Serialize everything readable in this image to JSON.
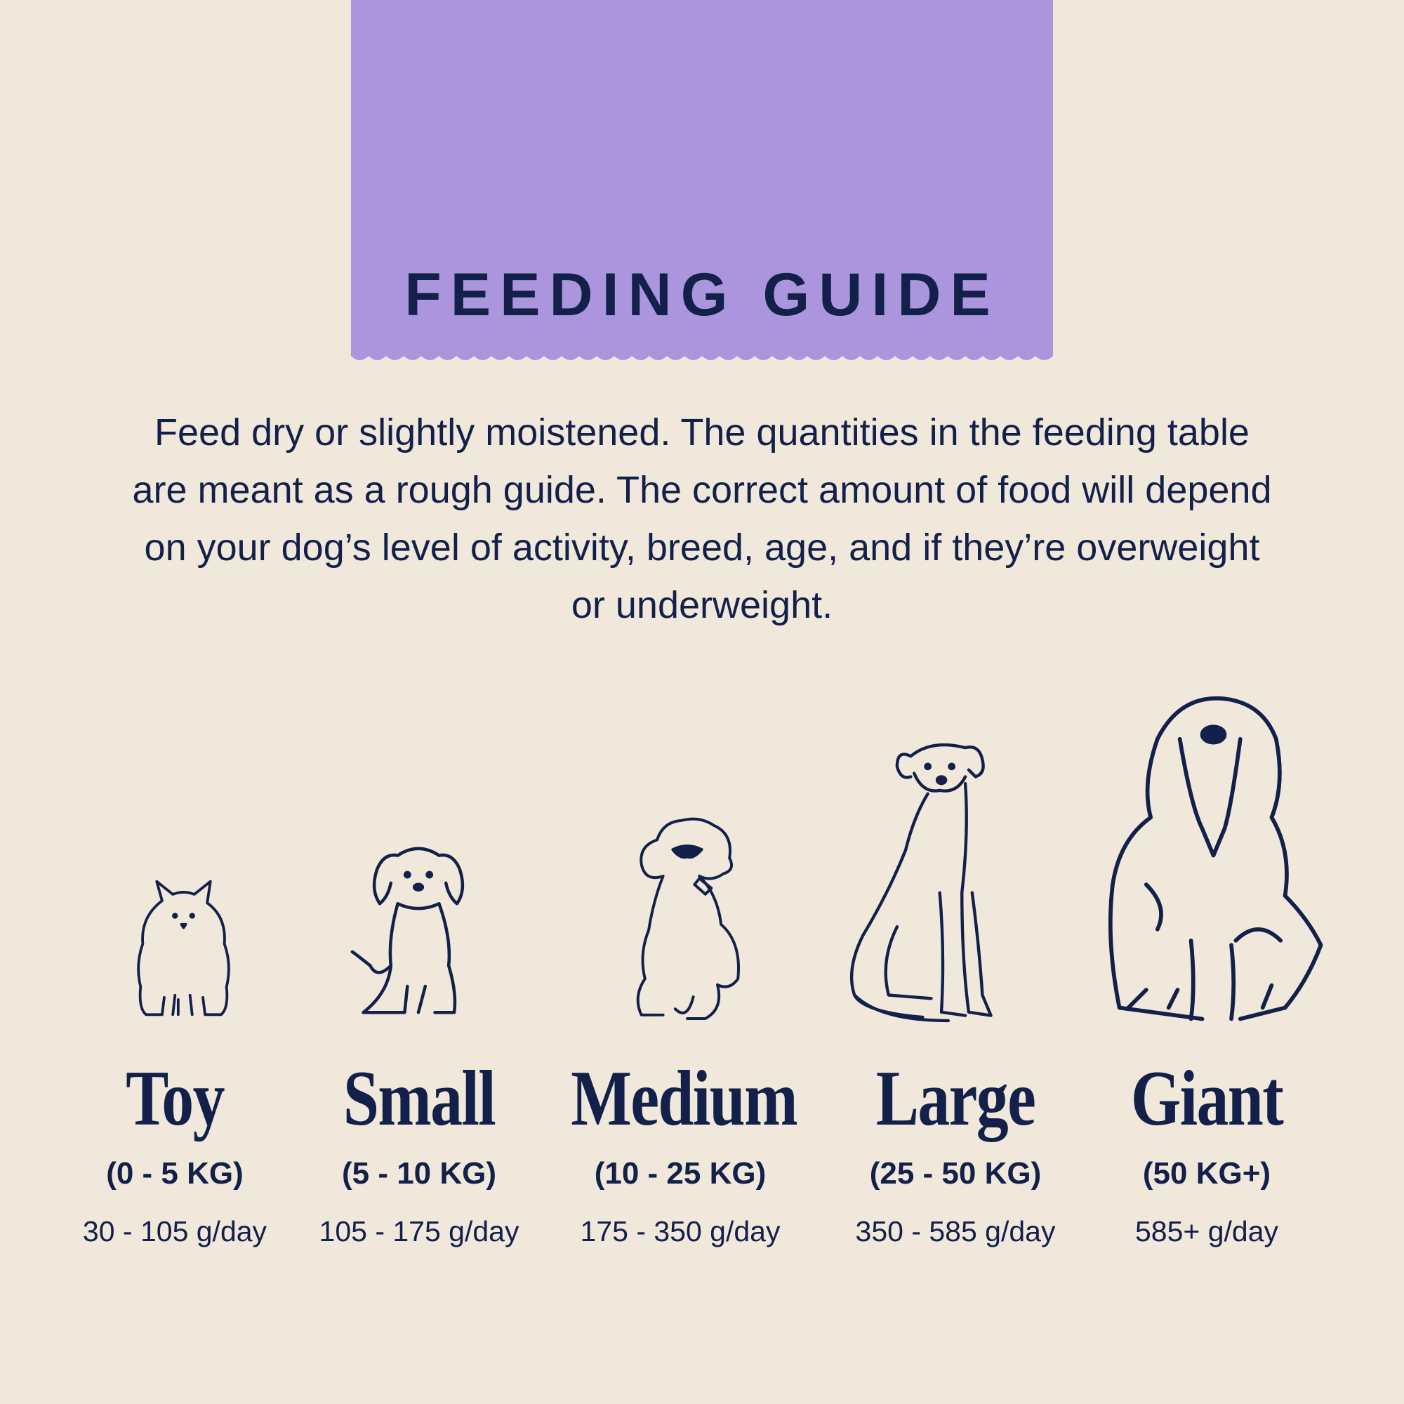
{
  "colors": {
    "background": "#f1e8dc",
    "banner": "#ab96dd",
    "text": "#13204a"
  },
  "header": {
    "title": "FEEDING GUIDE"
  },
  "intro": "Feed dry or slightly moistened. The quantities in the feeding table are meant as a rough guide. The correct amount of food will depend on your dog’s level of activity, breed, age, and if they’re overweight or underweight.",
  "sizes": [
    {
      "name": "Toy",
      "range": "(0 - 5 KG)",
      "amount": "30 - 105 g/day",
      "icon": "pomeranian-icon"
    },
    {
      "name": "Small",
      "range": "(5 - 10 KG)",
      "amount": "105 - 175 g/day",
      "icon": "spaniel-icon"
    },
    {
      "name": "Medium",
      "range": "(10 - 25 KG)",
      "amount": "175 - 350 g/day",
      "icon": "doodle-icon"
    },
    {
      "name": "Large",
      "range": "(25 - 50 KG)",
      "amount": "350 - 585 g/day",
      "icon": "labrador-icon"
    },
    {
      "name": "Giant",
      "range": "(50 KG+)",
      "amount": "585+ g/day",
      "icon": "sheepdog-icon"
    }
  ]
}
